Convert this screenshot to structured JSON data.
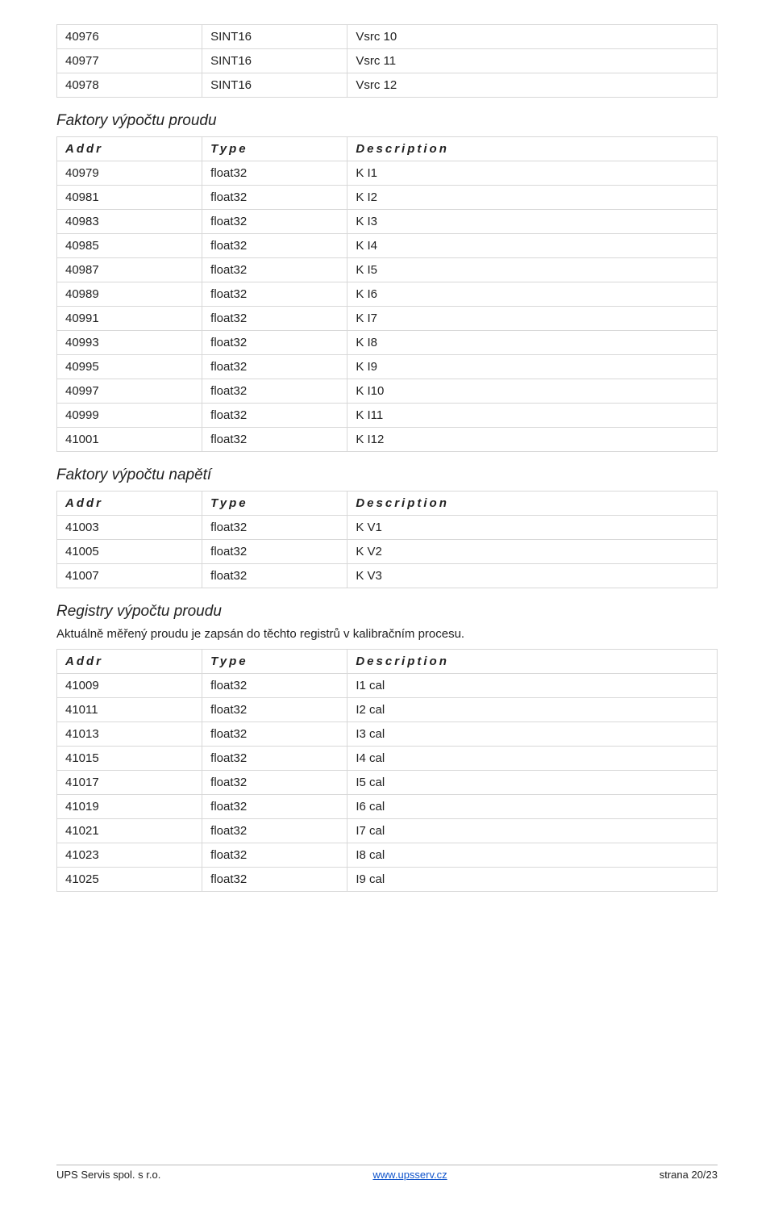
{
  "headers": {
    "addr": "Addr",
    "type": "Type",
    "desc": "Description"
  },
  "table1": {
    "rows": [
      {
        "addr": "40976",
        "type": "SINT16",
        "desc": "Vsrc 10"
      },
      {
        "addr": "40977",
        "type": "SINT16",
        "desc": "Vsrc 11"
      },
      {
        "addr": "40978",
        "type": "SINT16",
        "desc": "Vsrc 12"
      }
    ]
  },
  "section2": {
    "title": "Faktory výpočtu proudu",
    "rows": [
      {
        "addr": "40979",
        "type": "float32",
        "desc": "K I1"
      },
      {
        "addr": "40981",
        "type": "float32",
        "desc": "K I2"
      },
      {
        "addr": "40983",
        "type": "float32",
        "desc": "K I3"
      },
      {
        "addr": "40985",
        "type": "float32",
        "desc": "K I4"
      },
      {
        "addr": "40987",
        "type": "float32",
        "desc": "K I5"
      },
      {
        "addr": "40989",
        "type": "float32",
        "desc": "K I6"
      },
      {
        "addr": "40991",
        "type": "float32",
        "desc": "K I7"
      },
      {
        "addr": "40993",
        "type": "float32",
        "desc": "K I8"
      },
      {
        "addr": "40995",
        "type": "float32",
        "desc": "K I9"
      },
      {
        "addr": "40997",
        "type": "float32",
        "desc": "K I10"
      },
      {
        "addr": "40999",
        "type": "float32",
        "desc": "K I11"
      },
      {
        "addr": "41001",
        "type": "float32",
        "desc": "K I12"
      }
    ]
  },
  "section3": {
    "title": "Faktory výpočtu napětí",
    "rows": [
      {
        "addr": "41003",
        "type": "float32",
        "desc": "K V1"
      },
      {
        "addr": "41005",
        "type": "float32",
        "desc": "K V2"
      },
      {
        "addr": "41007",
        "type": "float32",
        "desc": "K V3"
      }
    ]
  },
  "section4": {
    "title": "Registry výpočtu proudu",
    "note": "Aktuálně měřený proudu je zapsán do těchto registrů v kalibračním procesu.",
    "rows": [
      {
        "addr": "41009",
        "type": "float32",
        "desc": "I1 cal"
      },
      {
        "addr": "41011",
        "type": "float32",
        "desc": "I2 cal"
      },
      {
        "addr": "41013",
        "type": "float32",
        "desc": "I3 cal"
      },
      {
        "addr": "41015",
        "type": "float32",
        "desc": "I4 cal"
      },
      {
        "addr": "41017",
        "type": "float32",
        "desc": "I5 cal"
      },
      {
        "addr": "41019",
        "type": "float32",
        "desc": "I6 cal"
      },
      {
        "addr": "41021",
        "type": "float32",
        "desc": "I7 cal"
      },
      {
        "addr": "41023",
        "type": "float32",
        "desc": "I8 cal"
      },
      {
        "addr": "41025",
        "type": "float32",
        "desc": "I9 cal"
      }
    ]
  },
  "footer": {
    "left": "UPS Servis spol. s r.o.",
    "center": "www.upsserv.cz",
    "right": "strana 20/23"
  }
}
